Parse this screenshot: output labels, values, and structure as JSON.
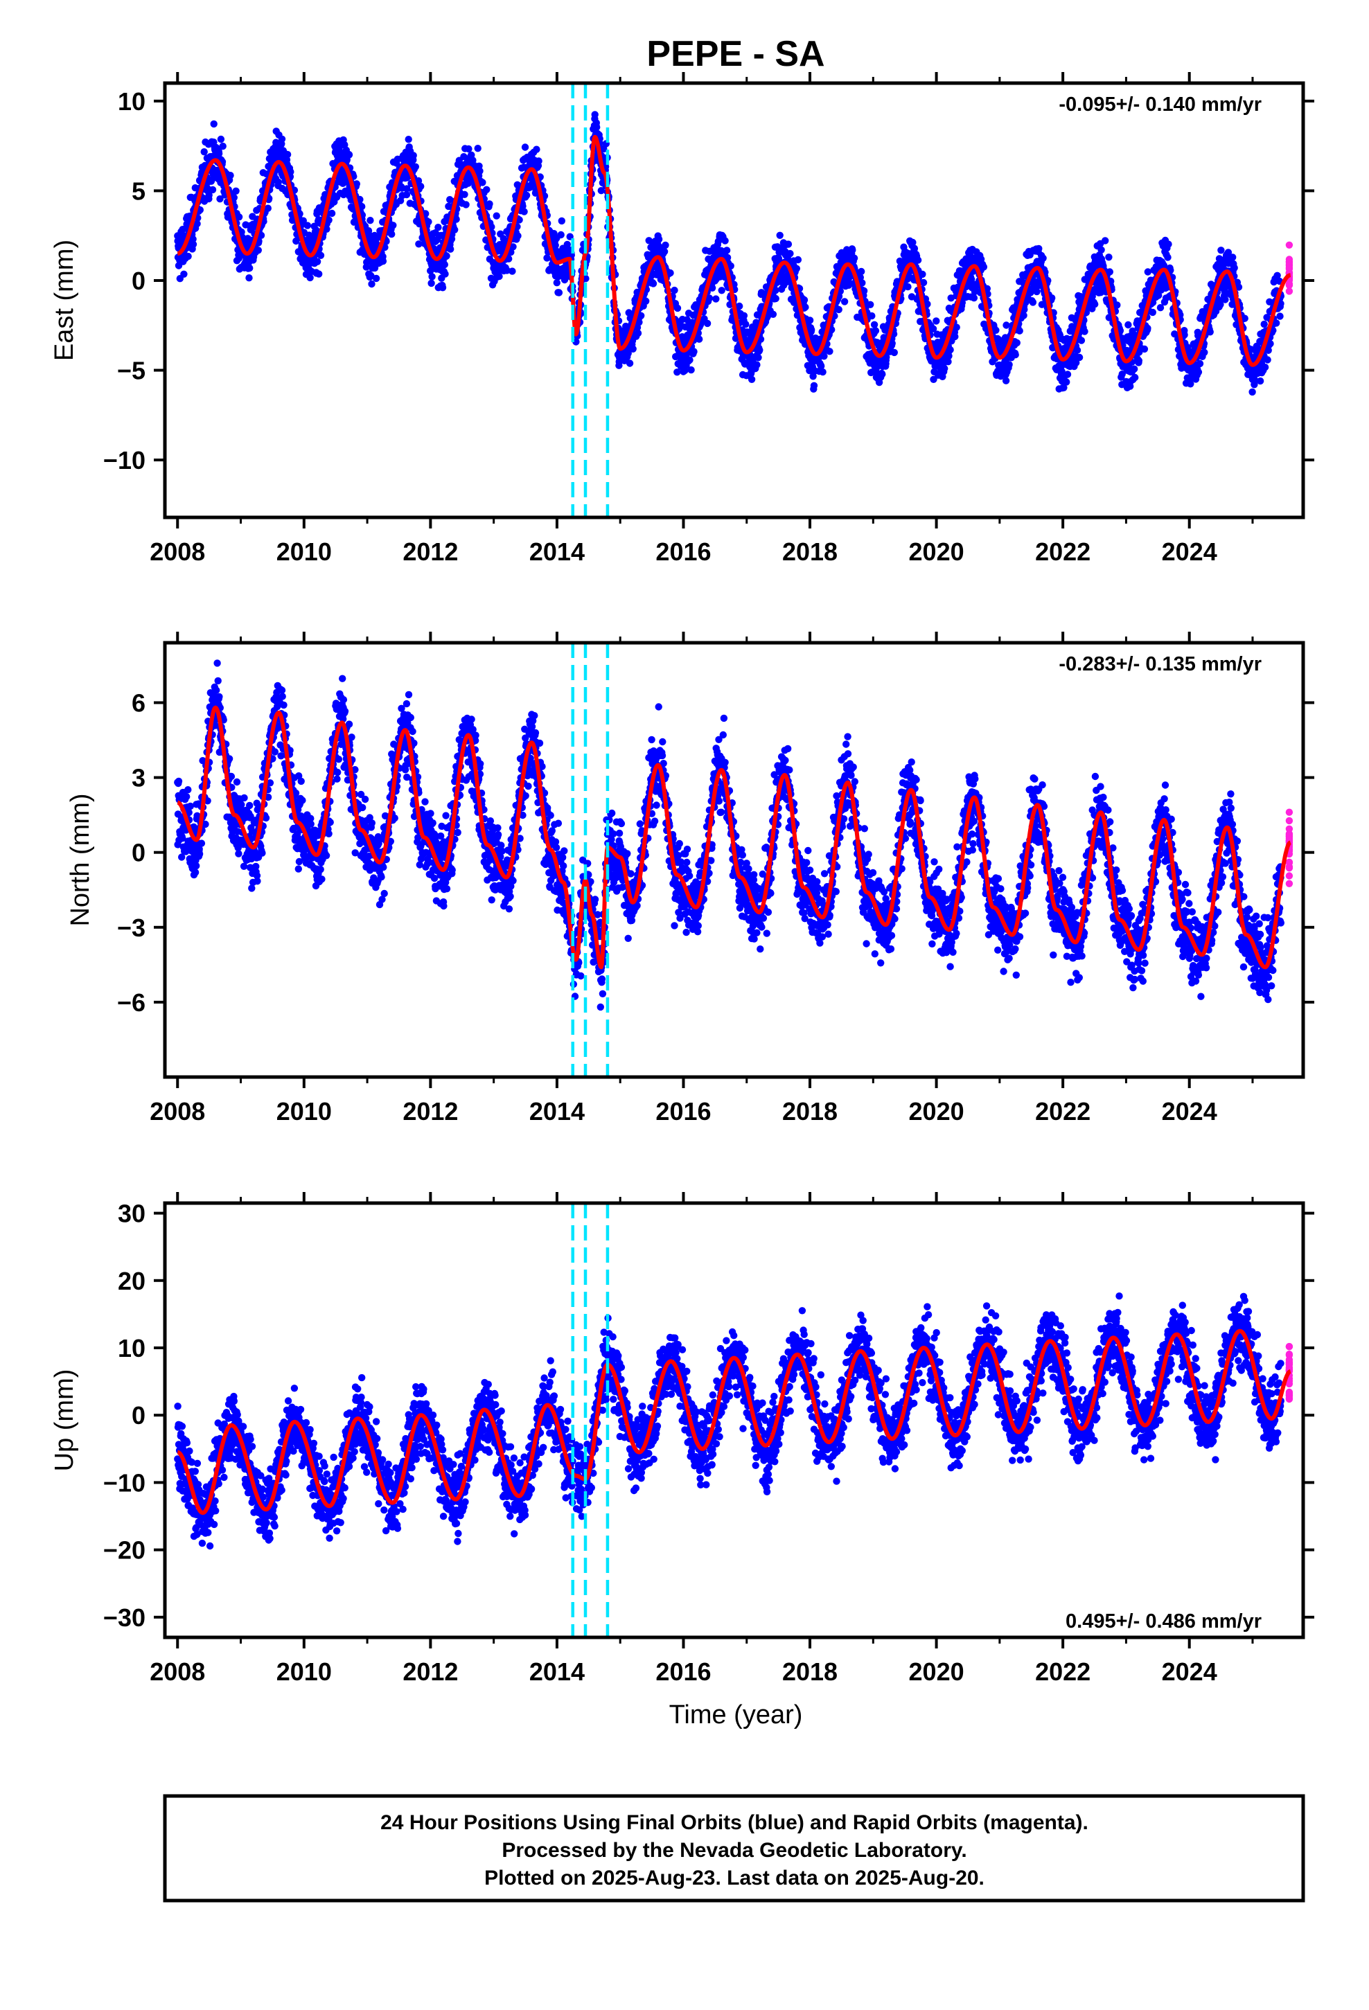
{
  "title": "PEPE - SA",
  "xlabel": "Time (year)",
  "colors": {
    "final": "#0000ff",
    "rapid": "#ff22dd",
    "model": "#ff0000",
    "steps": "#00e5ff",
    "frame": "#000000"
  },
  "footer": {
    "lines": [
      "24 Hour Positions Using Final Orbits (blue) and Rapid Orbits (magenta).",
      "Processed by the Nevada Geodetic Laboratory.",
      "Plotted on 2025-Aug-23. Last data on 2025-Aug-20."
    ]
  },
  "chart_data": [
    {
      "type": "scatter",
      "component": "east",
      "ylabel": "East (mm)",
      "rate_label": "-0.095+/- 0.140 mm/yr",
      "xlim": [
        2007.8,
        2025.8
      ],
      "ylim": [
        -13.2,
        11
      ],
      "xticks": [
        2008,
        2010,
        2012,
        2014,
        2016,
        2018,
        2020,
        2022,
        2024
      ],
      "yticks": [
        -10,
        -5,
        0,
        5,
        10
      ],
      "ytick_labels": [
        "−10",
        "−5",
        "0",
        "5",
        "10"
      ],
      "step_epochs": [
        2014.25,
        2014.45,
        2014.8
      ],
      "series": [
        {
          "name": "Final Orbits (blue)",
          "role": "final",
          "x_range": [
            2008.0,
            2025.45
          ]
        },
        {
          "name": "Rapid Orbits (magenta)",
          "role": "rapid",
          "x_range": [
            2025.45,
            2025.63
          ]
        },
        {
          "role": "model",
          "type": "line",
          "x": [
            2008.0,
            2008.6,
            2009.1,
            2009.6,
            2010.1,
            2010.6,
            2011.1,
            2011.6,
            2012.1,
            2012.6,
            2013.1,
            2013.6,
            2014.0,
            2014.2,
            2014.3,
            2014.45,
            2014.6,
            2014.75,
            2015.0,
            2015.6,
            2016.0,
            2016.6,
            2017.0,
            2017.6,
            2018.1,
            2018.6,
            2019.1,
            2019.6,
            2020.0,
            2020.6,
            2021.0,
            2021.6,
            2022.0,
            2022.6,
            2023.0,
            2023.6,
            2024.0,
            2024.6,
            2025.0,
            2025.6
          ],
          "y": [
            1.5,
            6.7,
            1.5,
            6.6,
            1.4,
            6.5,
            1.3,
            6.4,
            1.2,
            6.3,
            1.1,
            6.2,
            1.0,
            1.2,
            -3.0,
            1.5,
            8.0,
            6.0,
            -3.8,
            1.3,
            -3.9,
            1.2,
            -4.0,
            1.0,
            -4.1,
            0.9,
            -4.2,
            0.9,
            -4.3,
            0.8,
            -4.3,
            0.7,
            -4.4,
            0.6,
            -4.5,
            0.6,
            -4.6,
            0.5,
            -4.7,
            0.3
          ]
        }
      ]
    },
    {
      "type": "scatter",
      "component": "north",
      "ylabel": "North (mm)",
      "rate_label": "-0.283+/- 0.135 mm/yr",
      "xlim": [
        2007.8,
        2025.8
      ],
      "ylim": [
        -9,
        8.4
      ],
      "xticks": [
        2008,
        2010,
        2012,
        2014,
        2016,
        2018,
        2020,
        2022,
        2024
      ],
      "yticks": [
        -6,
        -3,
        0,
        3,
        6
      ],
      "ytick_labels": [
        "−6",
        "−3",
        "0",
        "3",
        "6"
      ],
      "step_epochs": [
        2014.25,
        2014.45,
        2014.8
      ],
      "series": [
        {
          "name": "Final Orbits (blue)",
          "role": "final",
          "x_range": [
            2008.0,
            2025.45
          ]
        },
        {
          "name": "Rapid Orbits (magenta)",
          "role": "rapid",
          "x_range": [
            2025.45,
            2025.63
          ]
        },
        {
          "role": "model",
          "type": "line",
          "x": [
            2008.0,
            2008.3,
            2008.6,
            2008.9,
            2009.2,
            2009.6,
            2009.9,
            2010.2,
            2010.6,
            2010.9,
            2011.2,
            2011.6,
            2011.9,
            2012.2,
            2012.6,
            2012.9,
            2013.2,
            2013.6,
            2013.9,
            2014.1,
            2014.3,
            2014.45,
            2014.55,
            2014.7,
            2014.8,
            2015.0,
            2015.2,
            2015.6,
            2015.9,
            2016.2,
            2016.6,
            2016.9,
            2017.2,
            2017.6,
            2017.9,
            2018.2,
            2018.6,
            2018.9,
            2019.2,
            2019.6,
            2019.9,
            2020.2,
            2020.6,
            2020.9,
            2021.2,
            2021.6,
            2021.9,
            2022.2,
            2022.6,
            2022.9,
            2023.2,
            2023.6,
            2023.9,
            2024.2,
            2024.6,
            2024.9,
            2025.2,
            2025.6
          ],
          "y": [
            2.0,
            0.5,
            5.8,
            1.5,
            0.2,
            5.6,
            1.2,
            -0.1,
            5.2,
            0.9,
            -0.4,
            4.9,
            0.6,
            -0.7,
            4.7,
            0.3,
            -1.0,
            4.4,
            0.1,
            -1.2,
            -4.3,
            -1.1,
            -2.5,
            -4.6,
            0.2,
            -0.2,
            -2.0,
            3.5,
            -0.9,
            -2.2,
            3.3,
            -1.0,
            -2.4,
            3.1,
            -1.4,
            -2.6,
            2.8,
            -1.6,
            -2.9,
            2.5,
            -1.8,
            -3.1,
            2.2,
            -2.2,
            -3.3,
            1.9,
            -2.3,
            -3.6,
            1.6,
            -2.7,
            -3.9,
            1.3,
            -3.0,
            -4.1,
            1.0,
            -3.3,
            -4.6,
            0.4
          ]
        }
      ]
    },
    {
      "type": "scatter",
      "component": "up",
      "ylabel": "Up (mm)",
      "rate_label": "0.495+/- 0.486 mm/yr",
      "xlim": [
        2007.8,
        2025.8
      ],
      "ylim": [
        -33,
        31.5
      ],
      "xticks": [
        2008,
        2010,
        2012,
        2014,
        2016,
        2018,
        2020,
        2022,
        2024
      ],
      "yticks": [
        -30,
        -20,
        -10,
        0,
        10,
        20,
        30
      ],
      "ytick_labels": [
        "−30",
        "−20",
        "−10",
        "0",
        "10",
        "20",
        "30"
      ],
      "step_epochs": [
        2014.25,
        2014.45,
        2014.8
      ],
      "series": [
        {
          "name": "Final Orbits (blue)",
          "role": "final",
          "x_range": [
            2008.0,
            2025.45
          ]
        },
        {
          "name": "Rapid Orbits (magenta)",
          "role": "rapid",
          "x_range": [
            2025.45,
            2025.63
          ]
        },
        {
          "role": "model",
          "type": "line",
          "x": [
            2008.0,
            2008.4,
            2008.85,
            2009.4,
            2009.85,
            2010.4,
            2010.85,
            2011.4,
            2011.85,
            2012.4,
            2012.85,
            2013.4,
            2013.85,
            2014.3,
            2014.45,
            2014.8,
            2015.3,
            2015.8,
            2016.3,
            2016.8,
            2017.3,
            2017.8,
            2018.3,
            2018.8,
            2019.3,
            2019.8,
            2020.3,
            2020.8,
            2021.3,
            2021.8,
            2022.3,
            2022.8,
            2023.3,
            2023.8,
            2024.3,
            2024.8,
            2025.3,
            2025.6
          ],
          "y": [
            -5.5,
            -14.5,
            -1.5,
            -14.0,
            -1.0,
            -13.5,
            -0.5,
            -13.0,
            0.0,
            -12.5,
            0.8,
            -12.0,
            1.5,
            -9.0,
            -9.5,
            7.5,
            -5.5,
            8.0,
            -5.0,
            8.5,
            -4.5,
            9.0,
            -4.0,
            9.5,
            -3.5,
            10.0,
            -3.0,
            10.5,
            -2.5,
            11.0,
            -2.0,
            11.5,
            -1.5,
            12.0,
            -1.0,
            12.5,
            -0.5,
            6.5
          ]
        }
      ]
    }
  ]
}
